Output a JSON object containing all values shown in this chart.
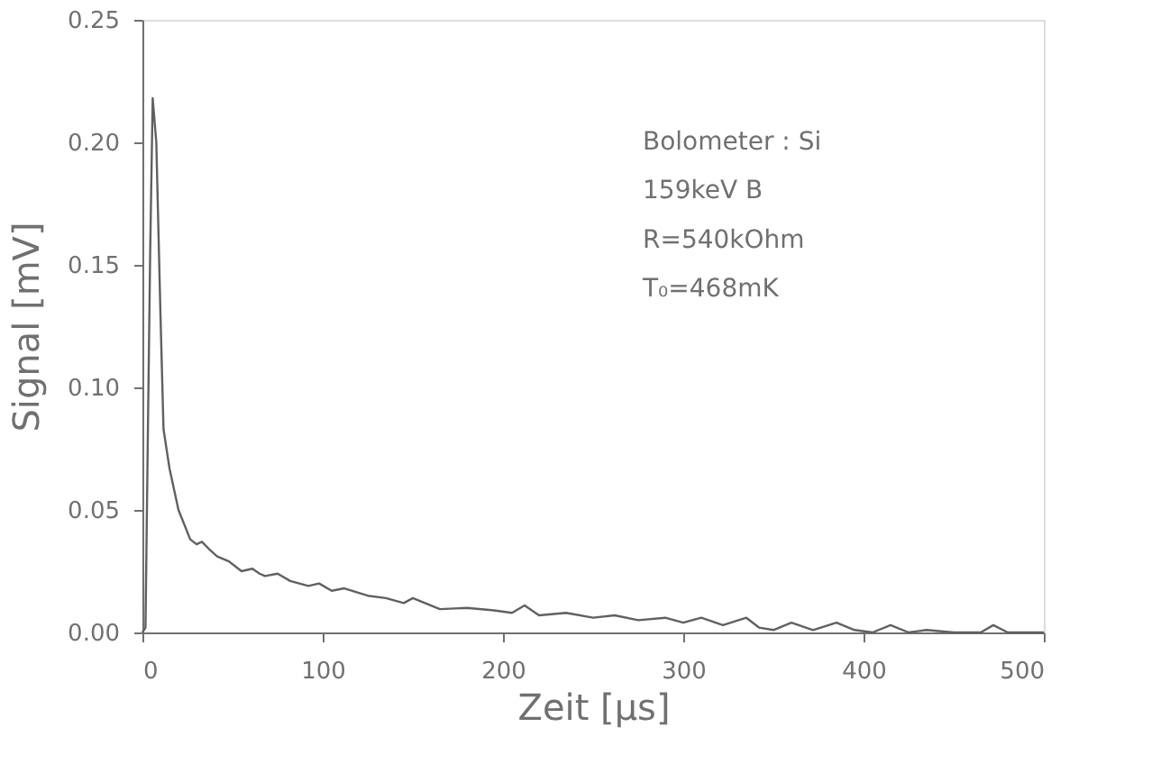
{
  "chart_data": {
    "type": "line",
    "xlabel": "Zeit [µs]",
    "ylabel": "Signal [mV]",
    "annotations": [
      "Bolometer : Si",
      "159keV B",
      "R=540kOhm",
      "T₀=468mK"
    ],
    "x": [
      0,
      1.7,
      3,
      4.3,
      5.7,
      7.7,
      10,
      11.7,
      15,
      20,
      26.5,
      30,
      33,
      37,
      41.5,
      48,
      55,
      61,
      65,
      68,
      75,
      82,
      92,
      98,
      105,
      112,
      125,
      135,
      145,
      150,
      165,
      180,
      195,
      205,
      212,
      220,
      235,
      250,
      262,
      275,
      290,
      300,
      310,
      322,
      335,
      342,
      350,
      360,
      372,
      385,
      395,
      405,
      415,
      425,
      435,
      450,
      465,
      472,
      480,
      500
    ],
    "series": [
      {
        "color": "#606060",
        "values": [
          0.0,
          0.002,
          0.08,
          0.155,
          0.218,
          0.2,
          0.13,
          0.083,
          0.067,
          0.05,
          0.038,
          0.036,
          0.037,
          0.034,
          0.031,
          0.029,
          0.025,
          0.026,
          0.024,
          0.023,
          0.024,
          0.021,
          0.019,
          0.02,
          0.017,
          0.018,
          0.015,
          0.014,
          0.012,
          0.014,
          0.0095,
          0.01,
          0.009,
          0.008,
          0.011,
          0.007,
          0.008,
          0.006,
          0.007,
          0.005,
          0.006,
          0.004,
          0.006,
          0.003,
          0.006,
          0.002,
          0.001,
          0.004,
          0.001,
          0.004,
          0.001,
          0.0,
          0.003,
          0.0,
          0.001,
          0.0,
          0.0,
          0.003,
          0.0,
          0.0
        ]
      }
    ],
    "xlim": [
      0,
      500
    ],
    "xticks": [
      0,
      100,
      200,
      300,
      400,
      500
    ],
    "ylim": [
      0,
      0.25
    ],
    "yticks": [
      {
        "value": 0,
        "label": "0.00"
      },
      {
        "value": 0.05,
        "label": "0.05"
      },
      {
        "value": 0.1,
        "label": "0.10"
      },
      {
        "value": 0.15,
        "label": "0.15"
      },
      {
        "value": 0.2,
        "label": "0.20"
      },
      {
        "value": 0.25,
        "label": "0.25"
      }
    ],
    "grid": false,
    "marker": "none",
    "line_style": "solid"
  }
}
